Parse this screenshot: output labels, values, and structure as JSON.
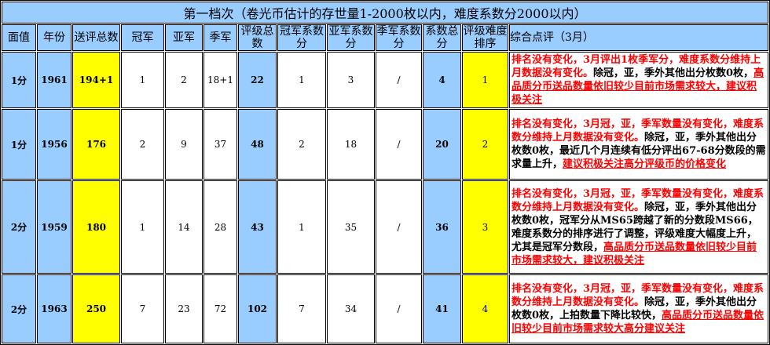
{
  "title": "第一档次（卷光币估计的存世量1-2000枚以内，难度系数分2000以内）",
  "headers": [
    "面值",
    "年份",
    "送评总数",
    "冠军",
    "亚军",
    "季军",
    "评级总数",
    "冠军系数分",
    "亚军系数分",
    "季军系数分",
    "系数总分",
    "评级难度排序",
    "综合点评（3月）"
  ],
  "rows": [
    {
      "cells": [
        "1分",
        "1961",
        "194+1",
        "1",
        "2",
        "18+1",
        "22",
        "1",
        "3",
        "/",
        "4",
        "1"
      ],
      "comment": {
        "red": "排名没有变化，3月评出1枚季军分，难度系数分维持上月数据没有变化。",
        "black": "除冠，亚，季外其他出分枚数0枚，",
        "link": "高品质分币送品数量依旧较少目前市场需求较大，建议积极关注"
      }
    },
    {
      "cells": [
        "1分",
        "1956",
        "176",
        "2",
        "9",
        "37",
        "48",
        "2",
        "18",
        "/",
        "20",
        "2"
      ],
      "comment": {
        "red": "排名没有变化，3月冠，亚，季军数量没有变化，难度系数分维持上月数据没有变化。",
        "black": "除冠，亚，季外其他出分枚数0枚，最近几个月连续有低分评出67-68分数段的需求量上升，",
        "link": "建议积极关注高分评级币的价格变化"
      }
    },
    {
      "cells": [
        "2分",
        "1959",
        "180",
        "1",
        "14",
        "28",
        "43",
        "1",
        "35",
        "/",
        "36",
        "3"
      ],
      "comment": {
        "red": "排名没有变化，3月冠，亚，季军数量没有变化，难度系数分维持上月数据没有变化。",
        "black": "除冠，亚，季外其他出分枚数0枚，冠军分从MS65跨越了新的分数段MS66，难度系数分的排序进行了调整，评级难度大幅度上升，尤其是冠军分数段，",
        "link": "高品质分币送品数量依旧较少目前市场需求较大，建议积极关注"
      }
    },
    {
      "cells": [
        "2分",
        "1963",
        "250",
        "7",
        "23",
        "72",
        "102",
        "7",
        "34",
        "/",
        "41",
        "4"
      ],
      "comment": {
        "red": "排名没有变化，3月冠，亚，季军数量没有变化，难度系数分维持上月数据没有变化。",
        "black": "除冠，亚，季外其他出分枚数0枚，上拍数量下降比较快，",
        "link": "高品质分币送品数量依旧较少目前市场需求较大高分建议关注"
      }
    }
  ]
}
